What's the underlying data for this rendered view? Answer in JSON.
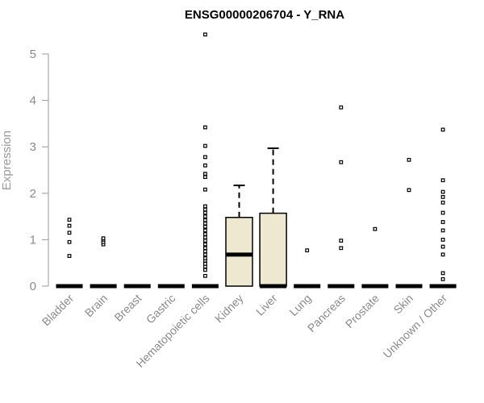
{
  "chart_data": {
    "type": "boxplot",
    "title": "ENSG00000206704 - Y_RNA",
    "xlabel": "",
    "ylabel": "Expression",
    "ylim": [
      0,
      5.4
    ],
    "yticks": [
      0,
      1,
      2,
      3,
      4,
      5
    ],
    "grid": false,
    "box_fill": "#efe8d0",
    "categories": [
      "Bladder",
      "Brain",
      "Breast",
      "Gastric",
      "Hematopoietic cells",
      "Kidney",
      "Liver",
      "Lung",
      "Pancreas",
      "Prostate",
      "Skin",
      "Unknown / Other"
    ],
    "boxes": [
      {
        "q1": 0,
        "median": 0,
        "q3": 0,
        "whisker_low": 0,
        "whisker_high": 0,
        "outliers": [
          0.65,
          0.95,
          1.15,
          1.3,
          1.43
        ]
      },
      {
        "q1": 0,
        "median": 0,
        "q3": 0,
        "whisker_low": 0,
        "whisker_high": 0,
        "outliers": [
          0.9,
          0.95,
          1.0,
          1.03
        ]
      },
      {
        "q1": 0,
        "median": 0,
        "q3": 0,
        "whisker_low": 0,
        "whisker_high": 0,
        "outliers": []
      },
      {
        "q1": 0,
        "median": 0,
        "q3": 0,
        "whisker_low": 0,
        "whisker_high": 0,
        "outliers": []
      },
      {
        "q1": 0,
        "median": 0,
        "q3": 0,
        "whisker_low": 0,
        "whisker_high": 0,
        "outliers": [
          0.22,
          0.35,
          0.42,
          0.48,
          0.55,
          0.6,
          0.68,
          0.75,
          0.82,
          0.9,
          0.98,
          1.05,
          1.12,
          1.2,
          1.28,
          1.35,
          1.42,
          1.5,
          1.58,
          1.65,
          1.72,
          2.08,
          2.35,
          2.42,
          2.6,
          2.78,
          3.02,
          3.42,
          5.42
        ]
      },
      {
        "q1": 0,
        "median": 0.68,
        "q3": 1.48,
        "whisker_low": 0,
        "whisker_high": 2.17,
        "outliers": []
      },
      {
        "q1": 0,
        "median": 0,
        "q3": 1.57,
        "whisker_low": 0,
        "whisker_high": 2.97,
        "outliers": []
      },
      {
        "q1": 0,
        "median": 0,
        "q3": 0,
        "whisker_low": 0,
        "whisker_high": 0,
        "outliers": [
          0.77
        ]
      },
      {
        "q1": 0,
        "median": 0,
        "q3": 0,
        "whisker_low": 0,
        "whisker_high": 0,
        "outliers": [
          0.82,
          0.98,
          2.67,
          3.85
        ]
      },
      {
        "q1": 0,
        "median": 0,
        "q3": 0,
        "whisker_low": 0,
        "whisker_high": 0,
        "outliers": [
          1.23
        ]
      },
      {
        "q1": 0,
        "median": 0,
        "q3": 0,
        "whisker_low": 0,
        "whisker_high": 0,
        "outliers": [
          2.07,
          2.72
        ]
      },
      {
        "q1": 0,
        "median": 0,
        "q3": 0,
        "whisker_low": 0,
        "whisker_high": 0,
        "outliers": [
          0.15,
          0.28,
          0.68,
          0.85,
          1.0,
          1.2,
          1.38,
          1.58,
          1.8,
          1.92,
          2.03,
          2.28,
          3.37
        ]
      }
    ]
  }
}
